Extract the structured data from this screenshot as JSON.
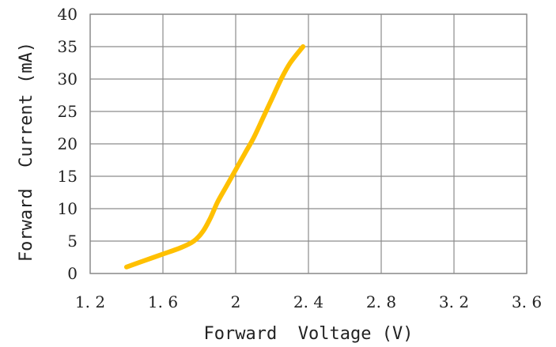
{
  "chart_data": {
    "type": "line",
    "title": "",
    "xlabel": "Forward  Voltage (V)",
    "ylabel": "Forward  Current (mA)",
    "xlim": [
      1.2,
      3.6
    ],
    "ylim": [
      0,
      40
    ],
    "x_ticks": [
      "1. 2",
      "1. 6",
      "2",
      "2. 4",
      "2. 8",
      "3. 2",
      "3. 6"
    ],
    "x_tick_values": [
      1.2,
      1.6,
      2.0,
      2.4,
      2.8,
      3.2,
      3.6
    ],
    "y_ticks": [
      "0",
      "5",
      "10",
      "15",
      "20",
      "25",
      "30",
      "35",
      "40"
    ],
    "y_tick_values": [
      0,
      5,
      10,
      15,
      20,
      25,
      30,
      35,
      40
    ],
    "grid": true,
    "legend": "none",
    "series": [
      {
        "color": "#FFC000",
        "x": [
          1.4,
          1.5,
          1.6,
          1.7,
          1.77,
          1.82,
          1.86,
          1.9,
          1.95,
          2.0,
          2.05,
          2.1,
          2.15,
          2.2,
          2.25,
          2.3,
          2.37
        ],
        "y": [
          1,
          2,
          3,
          4,
          5,
          6.5,
          8.5,
          11,
          13.5,
          16,
          18.5,
          21,
          24,
          27,
          30,
          32.5,
          35
        ]
      }
    ]
  }
}
